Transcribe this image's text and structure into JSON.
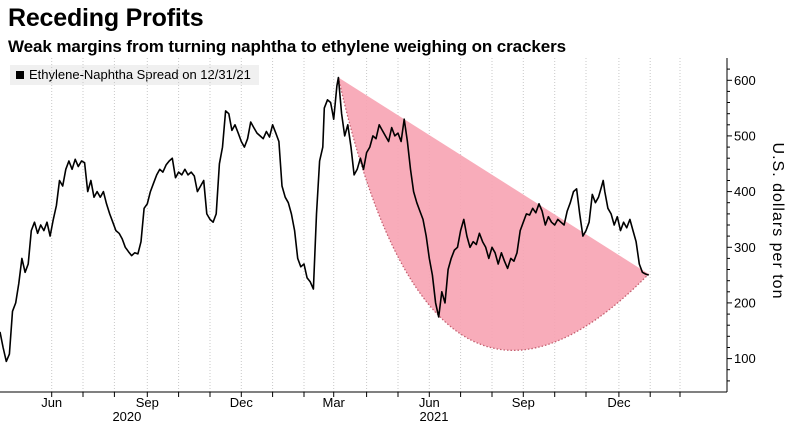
{
  "header": {
    "title": "Receding Profits",
    "subtitle": "Weak margins from turning naphtha to ethylene weighing on crackers"
  },
  "legend": {
    "label": "Ethylene-Naphtha Spread on 12/31/21"
  },
  "chart_data": {
    "type": "line",
    "title": "Receding Profits",
    "subtitle": "Weak margins from turning naphtha to ethylene weighing on crackers",
    "ylabel": "U.S. dollars per ton",
    "xlabel": "",
    "ylim": [
      40,
      640
    ],
    "xlim": [
      0,
      23.2
    ],
    "y_ticks": [
      100,
      200,
      300,
      400,
      500,
      600
    ],
    "y_tick_labels": [
      "100",
      "200",
      "300",
      "400",
      "500",
      "600"
    ],
    "y_axis_position": "right",
    "grid": "vertical dotted lines at month ticks",
    "x_ticks": [
      {
        "x": 1.65,
        "label": "Jun",
        "year": "2020"
      },
      {
        "x": 4.7,
        "label": "Sep",
        "year": ""
      },
      {
        "x": 7.7,
        "label": "Dec",
        "year": ""
      },
      {
        "x": 10.65,
        "label": "Mar",
        "year": ""
      },
      {
        "x": 13.7,
        "label": "Jun",
        "year": "2021"
      },
      {
        "x": 16.7,
        "label": "Sep",
        "year": ""
      },
      {
        "x": 19.75,
        "label": "Dec",
        "year": ""
      }
    ],
    "x_tick_marks": [
      1.65,
      2.65,
      3.65,
      4.7,
      5.7,
      6.7,
      7.7,
      8.7,
      9.7,
      10.65,
      11.7,
      12.7,
      13.7,
      14.7,
      15.7,
      16.7,
      17.7,
      18.7,
      19.75,
      20.75,
      21.7
    ],
    "year_labels": [
      {
        "x": 4.05,
        "label": "2020"
      },
      {
        "x": 13.85,
        "label": "2021"
      }
    ],
    "series": [
      {
        "name": "Ethylene-Naphtha Spread",
        "color": "#000000",
        "points": [
          [
            0.0,
            148
          ],
          [
            0.1,
            120
          ],
          [
            0.2,
            95
          ],
          [
            0.3,
            108
          ],
          [
            0.4,
            185
          ],
          [
            0.5,
            200
          ],
          [
            0.6,
            235
          ],
          [
            0.7,
            280
          ],
          [
            0.8,
            255
          ],
          [
            0.9,
            270
          ],
          [
            1.0,
            330
          ],
          [
            1.1,
            345
          ],
          [
            1.2,
            325
          ],
          [
            1.3,
            340
          ],
          [
            1.4,
            330
          ],
          [
            1.5,
            345
          ],
          [
            1.6,
            320
          ],
          [
            1.7,
            350
          ],
          [
            1.8,
            375
          ],
          [
            1.9,
            420
          ],
          [
            2.0,
            410
          ],
          [
            2.1,
            440
          ],
          [
            2.2,
            455
          ],
          [
            2.3,
            440
          ],
          [
            2.4,
            458
          ],
          [
            2.5,
            445
          ],
          [
            2.6,
            455
          ],
          [
            2.7,
            452
          ],
          [
            2.8,
            400
          ],
          [
            2.9,
            420
          ],
          [
            3.0,
            390
          ],
          [
            3.1,
            400
          ],
          [
            3.2,
            390
          ],
          [
            3.3,
            400
          ],
          [
            3.4,
            378
          ],
          [
            3.5,
            360
          ],
          [
            3.6,
            345
          ],
          [
            3.7,
            330
          ],
          [
            3.8,
            325
          ],
          [
            3.9,
            315
          ],
          [
            4.0,
            300
          ],
          [
            4.1,
            292
          ],
          [
            4.2,
            285
          ],
          [
            4.3,
            290
          ],
          [
            4.4,
            288
          ],
          [
            4.5,
            310
          ],
          [
            4.6,
            370
          ],
          [
            4.7,
            378
          ],
          [
            4.8,
            400
          ],
          [
            4.9,
            415
          ],
          [
            5.0,
            430
          ],
          [
            5.1,
            440
          ],
          [
            5.2,
            435
          ],
          [
            5.3,
            448
          ],
          [
            5.4,
            455
          ],
          [
            5.5,
            460
          ],
          [
            5.6,
            425
          ],
          [
            5.7,
            435
          ],
          [
            5.8,
            430
          ],
          [
            5.9,
            440
          ],
          [
            6.0,
            430
          ],
          [
            6.1,
            435
          ],
          [
            6.2,
            428
          ],
          [
            6.3,
            400
          ],
          [
            6.4,
            410
          ],
          [
            6.5,
            420
          ],
          [
            6.6,
            360
          ],
          [
            6.7,
            350
          ],
          [
            6.8,
            345
          ],
          [
            6.9,
            360
          ],
          [
            7.0,
            450
          ],
          [
            7.1,
            480
          ],
          [
            7.2,
            545
          ],
          [
            7.3,
            540
          ],
          [
            7.4,
            510
          ],
          [
            7.5,
            520
          ],
          [
            7.6,
            505
          ],
          [
            7.7,
            490
          ],
          [
            7.8,
            480
          ],
          [
            7.9,
            495
          ],
          [
            8.0,
            525
          ],
          [
            8.1,
            515
          ],
          [
            8.2,
            505
          ],
          [
            8.3,
            500
          ],
          [
            8.4,
            495
          ],
          [
            8.5,
            508
          ],
          [
            8.6,
            498
          ],
          [
            8.7,
            520
          ],
          [
            8.8,
            505
          ],
          [
            8.9,
            490
          ],
          [
            9.0,
            410
          ],
          [
            9.1,
            390
          ],
          [
            9.2,
            380
          ],
          [
            9.3,
            360
          ],
          [
            9.4,
            330
          ],
          [
            9.5,
            280
          ],
          [
            9.6,
            265
          ],
          [
            9.7,
            270
          ],
          [
            9.8,
            245
          ],
          [
            9.9,
            238
          ],
          [
            10.0,
            225
          ],
          [
            10.1,
            360
          ],
          [
            10.2,
            455
          ],
          [
            10.3,
            480
          ],
          [
            10.35,
            550
          ],
          [
            10.45,
            565
          ],
          [
            10.55,
            560
          ],
          [
            10.6,
            545
          ],
          [
            10.65,
            530
          ],
          [
            10.75,
            590
          ],
          [
            10.8,
            605
          ],
          [
            10.9,
            540
          ],
          [
            11.0,
            500
          ],
          [
            11.1,
            520
          ],
          [
            11.2,
            480
          ],
          [
            11.3,
            430
          ],
          [
            11.4,
            440
          ],
          [
            11.5,
            460
          ],
          [
            11.6,
            440
          ],
          [
            11.7,
            470
          ],
          [
            11.8,
            480
          ],
          [
            11.9,
            500
          ],
          [
            12.0,
            495
          ],
          [
            12.1,
            520
          ],
          [
            12.2,
            510
          ],
          [
            12.3,
            500
          ],
          [
            12.4,
            490
          ],
          [
            12.5,
            515
          ],
          [
            12.6,
            500
          ],
          [
            12.7,
            505
          ],
          [
            12.8,
            490
          ],
          [
            12.9,
            530
          ],
          [
            13.0,
            490
          ],
          [
            13.1,
            440
          ],
          [
            13.2,
            400
          ],
          [
            13.3,
            380
          ],
          [
            13.4,
            365
          ],
          [
            13.5,
            350
          ],
          [
            13.6,
            320
          ],
          [
            13.7,
            280
          ],
          [
            13.8,
            250
          ],
          [
            13.9,
            200
          ],
          [
            14.0,
            175
          ],
          [
            14.1,
            220
          ],
          [
            14.2,
            200
          ],
          [
            14.3,
            260
          ],
          [
            14.4,
            280
          ],
          [
            14.5,
            295
          ],
          [
            14.6,
            300
          ],
          [
            14.7,
            330
          ],
          [
            14.8,
            350
          ],
          [
            14.9,
            320
          ],
          [
            15.0,
            300
          ],
          [
            15.1,
            310
          ],
          [
            15.2,
            305
          ],
          [
            15.3,
            325
          ],
          [
            15.4,
            310
          ],
          [
            15.5,
            300
          ],
          [
            15.6,
            280
          ],
          [
            15.7,
            300
          ],
          [
            15.8,
            290
          ],
          [
            15.9,
            270
          ],
          [
            16.0,
            290
          ],
          [
            16.1,
            275
          ],
          [
            16.2,
            262
          ],
          [
            16.3,
            280
          ],
          [
            16.4,
            275
          ],
          [
            16.5,
            290
          ],
          [
            16.6,
            330
          ],
          [
            16.7,
            345
          ],
          [
            16.8,
            360
          ],
          [
            16.9,
            358
          ],
          [
            17.0,
            370
          ],
          [
            17.1,
            362
          ],
          [
            17.2,
            378
          ],
          [
            17.3,
            365
          ],
          [
            17.4,
            340
          ],
          [
            17.5,
            355
          ],
          [
            17.6,
            345
          ],
          [
            17.7,
            340
          ],
          [
            17.8,
            350
          ],
          [
            17.9,
            345
          ],
          [
            18.0,
            340
          ],
          [
            18.1,
            365
          ],
          [
            18.2,
            380
          ],
          [
            18.3,
            400
          ],
          [
            18.4,
            405
          ],
          [
            18.5,
            360
          ],
          [
            18.6,
            320
          ],
          [
            18.7,
            330
          ],
          [
            18.8,
            345
          ],
          [
            18.9,
            395
          ],
          [
            19.0,
            380
          ],
          [
            19.1,
            390
          ],
          [
            19.2,
            410
          ],
          [
            19.25,
            420
          ],
          [
            19.3,
            400
          ],
          [
            19.4,
            370
          ],
          [
            19.5,
            360
          ],
          [
            19.6,
            340
          ],
          [
            19.7,
            355
          ],
          [
            19.8,
            330
          ],
          [
            19.9,
            345
          ],
          [
            20.0,
            335
          ],
          [
            20.1,
            350
          ],
          [
            20.2,
            330
          ],
          [
            20.3,
            310
          ],
          [
            20.4,
            270
          ],
          [
            20.5,
            255
          ],
          [
            20.6,
            252
          ],
          [
            20.7,
            250
          ]
        ]
      }
    ],
    "annotations": [
      {
        "type": "shaded-region",
        "color": "#f7a3b2",
        "from": [
          10.8,
          605
        ],
        "to": [
          20.7,
          252
        ],
        "upper_boundary": "straight line",
        "lower_boundary": "dotted curve",
        "lower_boundary_minimum": 142
      }
    ]
  }
}
